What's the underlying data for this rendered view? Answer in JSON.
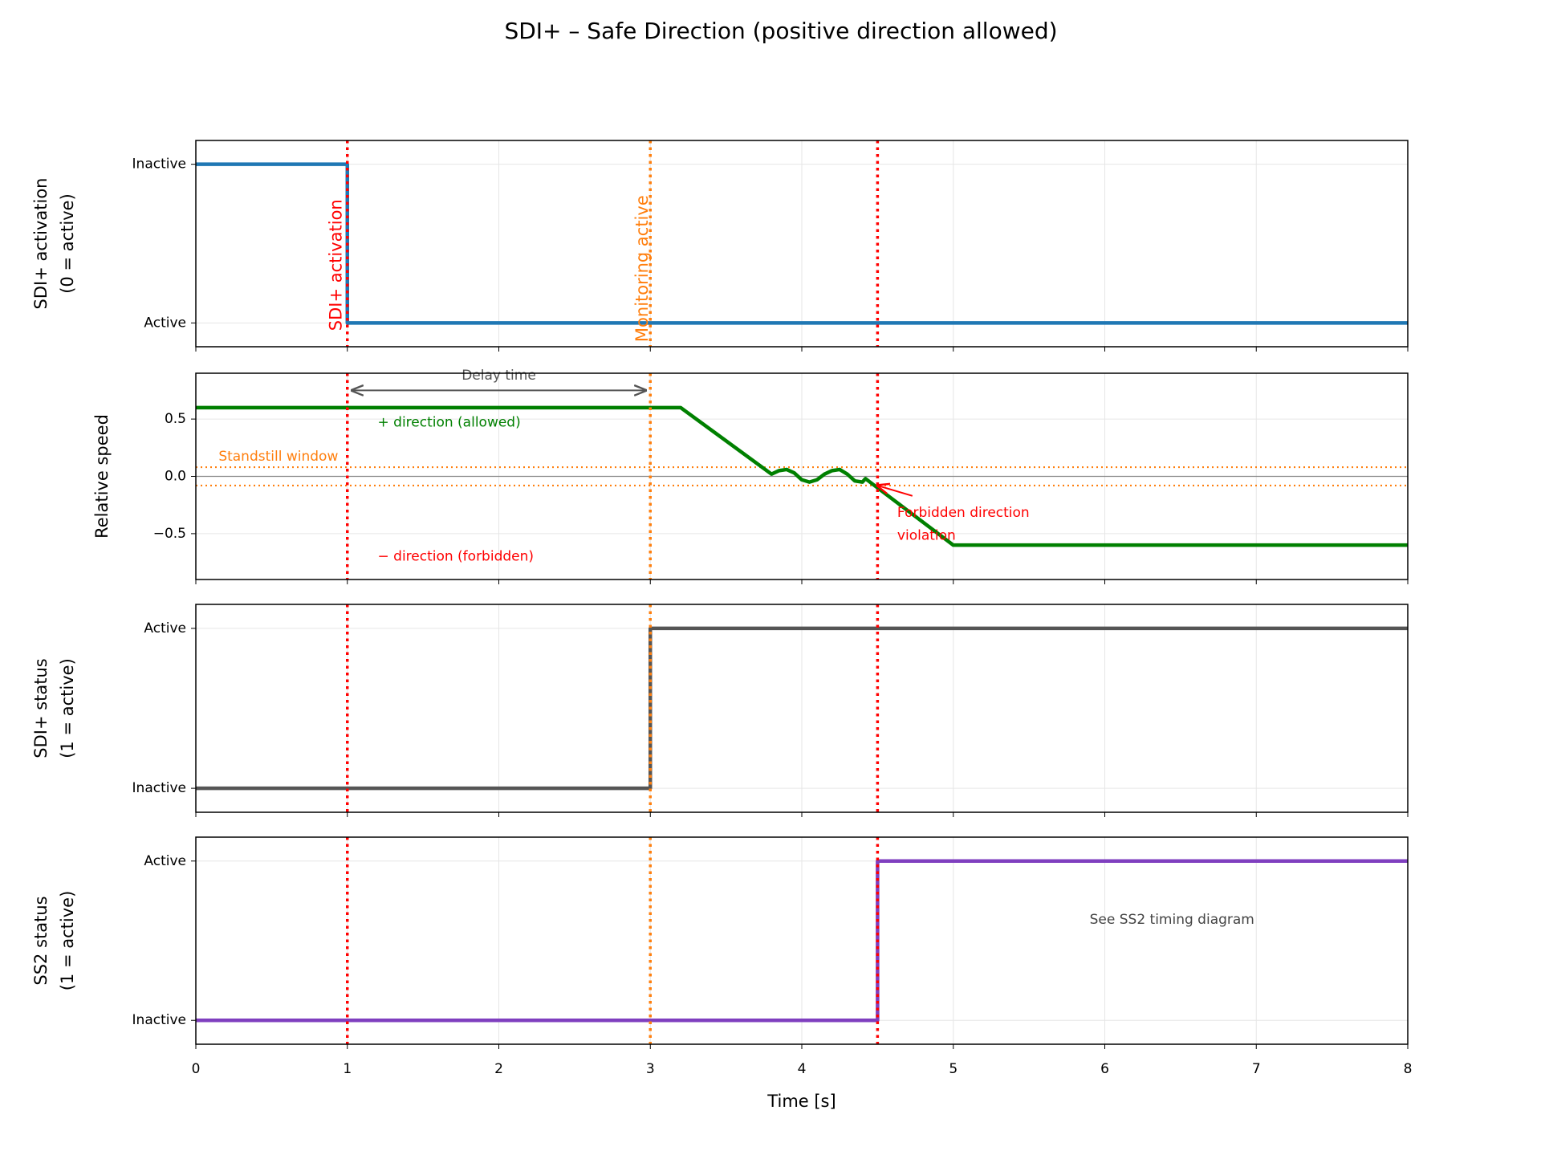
{
  "title": "SDI+ – Safe Direction (positive direction allowed)",
  "markers": [
    {
      "x": 1,
      "color": "#ff0000"
    },
    {
      "x": 3,
      "color": "#ff7f0e"
    },
    {
      "x": 4.5,
      "color": "#ff0000"
    }
  ],
  "chart_data": [
    {
      "type": "line",
      "y_label": [
        "SDI+ activation",
        "(0 = active)"
      ],
      "xlim": [
        0,
        8
      ],
      "xticks": [
        0,
        1,
        2,
        3,
        4,
        5,
        6,
        7,
        8
      ],
      "ylim": [
        -0.15,
        1.15
      ],
      "yticks": [
        {
          "value": 0,
          "label": "Active"
        },
        {
          "value": 1,
          "label": "Inactive"
        }
      ],
      "grid": true,
      "series": [
        {
          "color": "#1f77b4",
          "x": [
            0,
            1,
            1,
            8
          ],
          "values": [
            1,
            1,
            0,
            0
          ]
        }
      ],
      "annotations": [
        {
          "text": "SDI+ activation",
          "x": 0.93,
          "y": -0.05,
          "rotation": 90,
          "color": "#ff0000"
        },
        {
          "text": "Monitoring active",
          "x": 2.95,
          "y": -0.12,
          "rotation": 90,
          "color": "#ff7f0e"
        }
      ]
    },
    {
      "type": "line",
      "y_label": [
        "Relative speed"
      ],
      "xlim": [
        0,
        8
      ],
      "xticks": [
        0,
        1,
        2,
        3,
        4,
        5,
        6,
        7,
        8
      ],
      "ylim": [
        -0.9,
        0.9
      ],
      "yticks": [
        {
          "value": -0.5,
          "label": "−0.5"
        },
        {
          "value": 0,
          "label": "0.0"
        },
        0.5
      ],
      "grid": true,
      "series": [
        {
          "color": "#008000",
          "x": [
            0,
            3.2,
            3.8,
            3.85,
            3.9,
            3.95,
            4.0,
            4.05,
            4.1,
            4.15,
            4.2,
            4.25,
            4.3,
            4.35,
            4.4,
            4.42,
            4.45,
            5,
            8
          ],
          "values": [
            0.6,
            0.6,
            0.02,
            0.05,
            0.06,
            0.03,
            -0.03,
            -0.05,
            -0.03,
            0.02,
            0.05,
            0.06,
            0.02,
            -0.04,
            -0.05,
            -0.02,
            -0.05,
            -0.6,
            -0.6
          ]
        }
      ],
      "hlines": [
        {
          "y": 0,
          "color": "#888888",
          "style": "solid"
        },
        {
          "y": 0.08,
          "color": "#ff7f0e",
          "style": "dotted"
        },
        {
          "y": -0.08,
          "color": "#ff7f0e",
          "style": "dotted"
        }
      ],
      "arrows": [
        {
          "from": [
            1.03,
            0.75
          ],
          "to": [
            2.97,
            0.75
          ],
          "both": true,
          "color": "#555555"
        },
        {
          "from": [
            4.73,
            -0.17
          ],
          "to": [
            4.5,
            -0.08
          ],
          "both": false,
          "color": "#ff0000"
        }
      ],
      "annotations": [
        {
          "text": "Delay time",
          "x": 2,
          "y": 0.88,
          "color": "#555555",
          "align": "middle"
        },
        {
          "text": "+ direction (allowed)",
          "x": 1.2,
          "y": 0.47,
          "color": "#008000"
        },
        {
          "text": "− direction (forbidden)",
          "x": 1.2,
          "y": -0.7,
          "color": "#ff0000"
        },
        {
          "text": "Standstill window",
          "x": 0.15,
          "y": 0.17,
          "color": "#ff7f0e"
        },
        {
          "text": "Forbidden direction",
          "x": 4.63,
          "y": -0.32,
          "color": "#ff0000"
        },
        {
          "text": "violation",
          "x": 4.63,
          "y": -0.52,
          "color": "#ff0000"
        }
      ]
    },
    {
      "type": "line",
      "y_label": [
        "SDI+ status",
        "(1 = active)"
      ],
      "xlim": [
        0,
        8
      ],
      "xticks": [
        0,
        1,
        2,
        3,
        4,
        5,
        6,
        7,
        8
      ],
      "ylim": [
        -0.15,
        1.15
      ],
      "yticks": [
        {
          "value": 0,
          "label": "Inactive"
        },
        {
          "value": 1,
          "label": "Active"
        }
      ],
      "grid": true,
      "series": [
        {
          "color": "#555555",
          "x": [
            0,
            3,
            3,
            8
          ],
          "values": [
            0,
            0,
            1,
            1
          ]
        }
      ]
    },
    {
      "type": "line",
      "y_label": [
        "SS2 status",
        "(1 = active)"
      ],
      "x_label": "Time [s]",
      "xlim": [
        0,
        8
      ],
      "xticks": [
        0,
        1,
        2,
        3,
        4,
        5,
        6,
        7,
        8
      ],
      "ylim": [
        -0.15,
        1.15
      ],
      "yticks": [
        {
          "value": 0,
          "label": "Inactive"
        },
        {
          "value": 1,
          "label": "Active"
        }
      ],
      "grid": true,
      "series": [
        {
          "color": "#7f3fbf",
          "x": [
            0,
            4.5,
            4.5,
            8
          ],
          "values": [
            0,
            0,
            1,
            1
          ]
        }
      ],
      "annotations": [
        {
          "text": "See SS2 timing diagram",
          "x": 5.9,
          "y": 0.63,
          "color": "#444444"
        }
      ]
    }
  ]
}
